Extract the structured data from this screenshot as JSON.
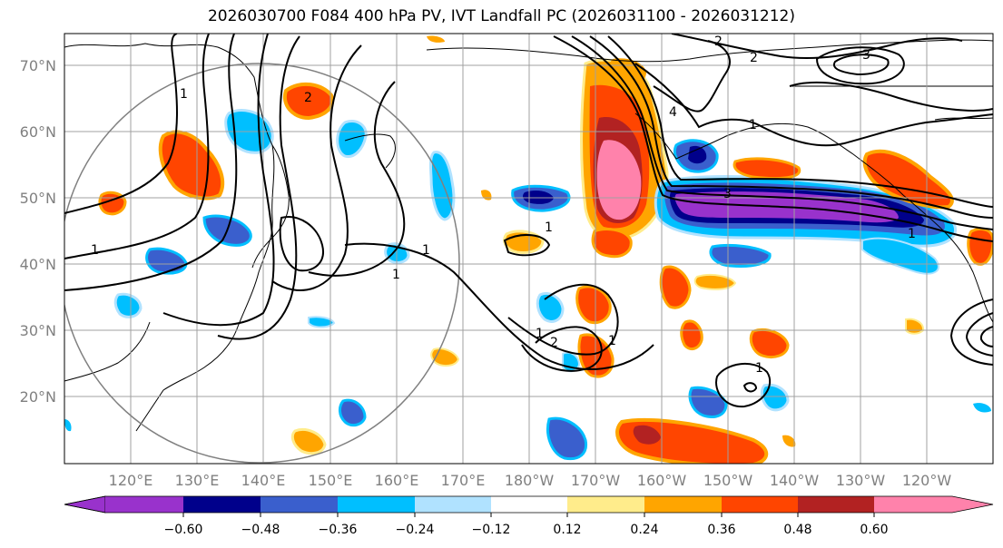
{
  "title": "2026030700 F084 400 hPa PV, IVT Landfall PC (2026031100 - 2026031212)",
  "map": {
    "lat_labels": [
      "70°N",
      "60°N",
      "50°N",
      "40°N",
      "30°N",
      "20°N"
    ],
    "lon_labels": [
      "120°E",
      "130°E",
      "140°E",
      "150°E",
      "160°E",
      "170°E",
      "180°W",
      "170°W",
      "160°W",
      "150°W",
      "140°W",
      "130°W",
      "120°W"
    ],
    "contour_labels": [
      "2",
      "2",
      "3",
      "2",
      "4",
      "1",
      "1",
      "1",
      "1",
      "1",
      "1",
      "1",
      "2",
      "1",
      "1",
      "3",
      "1"
    ]
  },
  "colorbar": {
    "colors": [
      "#9932cc",
      "#00008b",
      "#3a5fcd",
      "#00bfff",
      "#b0e2ff",
      "#ffffff",
      "#ffec8b",
      "#ffa500",
      "#ff4500",
      "#b22222",
      "#ff82ab"
    ],
    "tick_labels": [
      "−0.60",
      "−0.48",
      "−0.36",
      "−0.24",
      "−0.12",
      "0.12",
      "0.24",
      "0.36",
      "0.48",
      "0.60"
    ]
  }
}
